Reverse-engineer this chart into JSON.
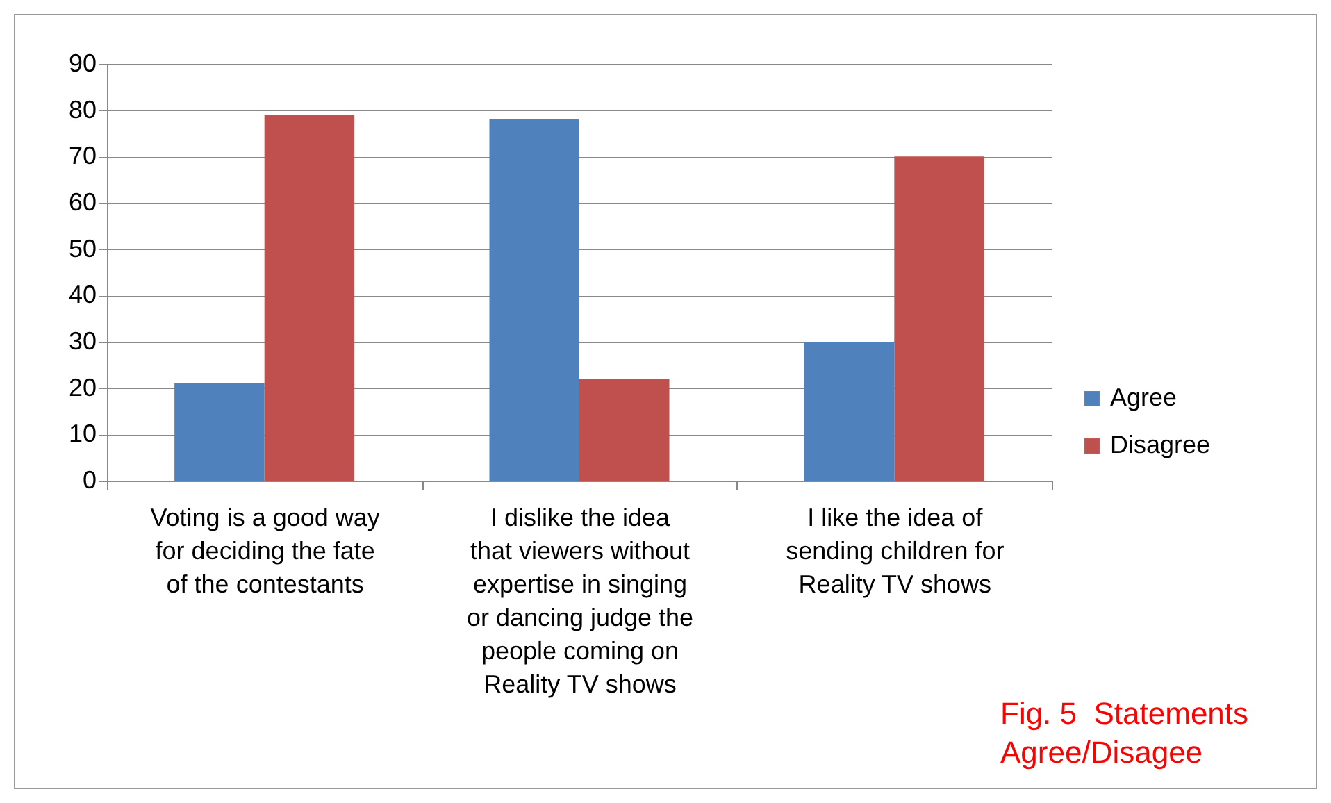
{
  "chart_data": {
    "type": "bar",
    "categories": [
      "Voting is a good way for deciding the fate of the contestants",
      "I dislike the idea that viewers without expertise in singing or dancing judge the people coming on Reality TV shows",
      "I like the idea of sending children for Reality TV shows"
    ],
    "series": [
      {
        "name": "Agree",
        "color": "#4f81bd",
        "values": [
          21,
          78,
          30
        ]
      },
      {
        "name": "Disagree",
        "color": "#c0504d",
        "values": [
          79,
          22,
          70
        ]
      }
    ],
    "ylim": [
      0,
      90
    ],
    "yticks": [
      0,
      10,
      20,
      30,
      40,
      50,
      60,
      70,
      80,
      90
    ],
    "grid": "y",
    "legend": "right",
    "annotations": [
      "Fig. 5  Statements Agree/Disagee"
    ]
  }
}
